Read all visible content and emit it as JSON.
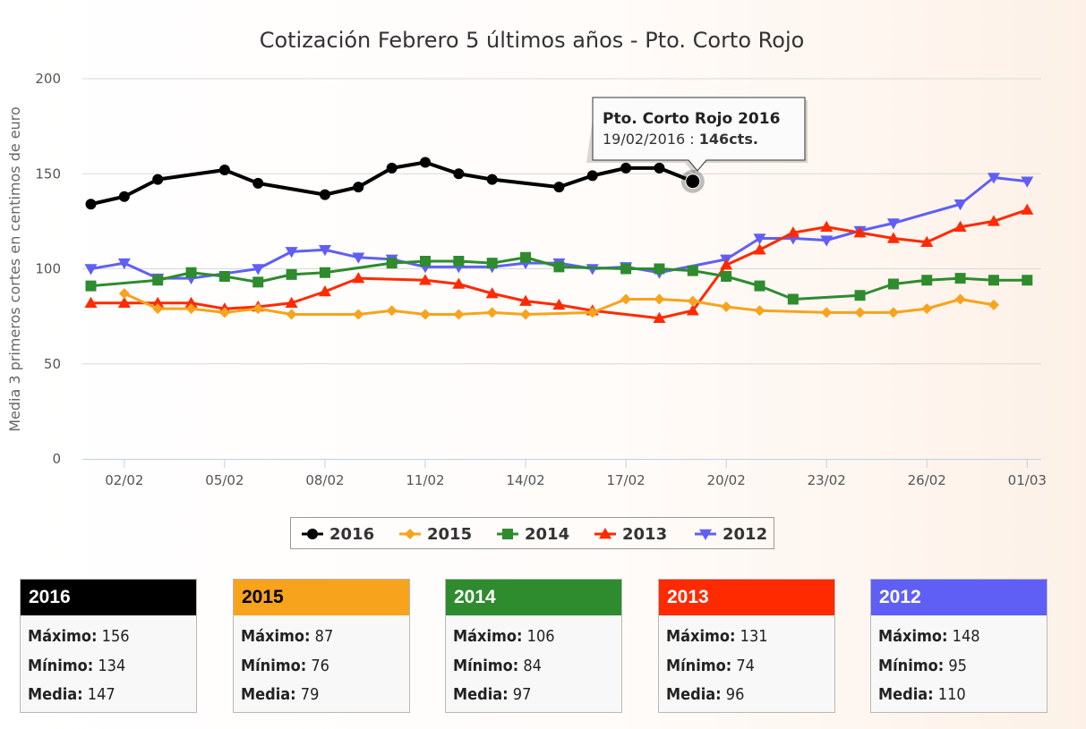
{
  "chart_data": {
    "type": "line",
    "title": "Cotización Febrero 5 últimos años - Pto. Corto Rojo",
    "ylabel": "Media 3 primeros cortes en centimos de euro",
    "xlabel": "",
    "ylim": [
      0,
      200
    ],
    "yticks": [
      "0",
      "50",
      "100",
      "150",
      "200"
    ],
    "xticks": [
      "02/02",
      "05/02",
      "08/02",
      "11/02",
      "14/02",
      "17/02",
      "20/02",
      "23/02",
      "26/02",
      "01/03"
    ],
    "grid": true,
    "legend_position": "bottom-center",
    "series": [
      {
        "name": "2016",
        "color": "#000000",
        "marker": "circle",
        "x": [
          "01/02",
          "02/02",
          "03/02",
          "05/02",
          "06/02",
          "08/02",
          "09/02",
          "10/02",
          "11/02",
          "12/02",
          "13/02",
          "15/02",
          "16/02",
          "17/02",
          "18/02",
          "19/02"
        ],
        "values": [
          134,
          138,
          147,
          152,
          145,
          139,
          143,
          153,
          156,
          150,
          147,
          143,
          149,
          153,
          153,
          146
        ]
      },
      {
        "name": "2015",
        "color": "#f7a31c",
        "marker": "diamond",
        "x": [
          "02/02",
          "03/02",
          "04/02",
          "05/02",
          "06/02",
          "07/02",
          "09/02",
          "10/02",
          "11/02",
          "12/02",
          "13/02",
          "14/02",
          "16/02",
          "17/02",
          "18/02",
          "19/02",
          "20/02",
          "21/02",
          "23/02",
          "24/02",
          "25/02",
          "26/02",
          "27/02",
          "28/02"
        ],
        "values": [
          87,
          79,
          79,
          77,
          79,
          76,
          76,
          78,
          76,
          76,
          77,
          76,
          77,
          84,
          84,
          83,
          80,
          78,
          77,
          77,
          77,
          79,
          84,
          81
        ]
      },
      {
        "name": "2014",
        "color": "#2e8b2e",
        "marker": "square",
        "x": [
          "01/02",
          "03/02",
          "04/02",
          "05/02",
          "06/02",
          "07/02",
          "08/02",
          "10/02",
          "11/02",
          "12/02",
          "13/02",
          "14/02",
          "15/02",
          "17/02",
          "18/02",
          "19/02",
          "20/02",
          "21/02",
          "22/02",
          "24/02",
          "25/02",
          "26/02",
          "27/02",
          "28/02",
          "01/03"
        ],
        "values": [
          91,
          94,
          98,
          96,
          93,
          97,
          98,
          103,
          104,
          104,
          103,
          106,
          101,
          100,
          100,
          99,
          96,
          91,
          84,
          86,
          92,
          94,
          95,
          94,
          94
        ]
      },
      {
        "name": "2013",
        "color": "#ff2a00",
        "marker": "triangle-up",
        "x": [
          "01/02",
          "02/02",
          "03/02",
          "04/02",
          "05/02",
          "06/02",
          "07/02",
          "08/02",
          "09/02",
          "11/02",
          "12/02",
          "13/02",
          "14/02",
          "15/02",
          "16/02",
          "18/02",
          "19/02",
          "20/02",
          "21/02",
          "22/02",
          "23/02",
          "24/02",
          "25/02",
          "26/02",
          "27/02",
          "28/02",
          "01/03"
        ],
        "values": [
          82,
          82,
          82,
          82,
          79,
          80,
          82,
          88,
          95,
          94,
          92,
          87,
          83,
          81,
          78,
          74,
          78,
          102,
          110,
          119,
          122,
          119,
          116,
          114,
          122,
          125,
          131
        ]
      },
      {
        "name": "2012",
        "color": "#5f5ff5",
        "marker": "triangle-down",
        "x": [
          "01/02",
          "02/02",
          "03/02",
          "04/02",
          "06/02",
          "07/02",
          "08/02",
          "09/02",
          "10/02",
          "11/02",
          "12/02",
          "13/02",
          "14/02",
          "15/02",
          "16/02",
          "17/02",
          "18/02",
          "20/02",
          "21/02",
          "22/02",
          "23/02",
          "24/02",
          "25/02",
          "27/02",
          "28/02",
          "01/03"
        ],
        "values": [
          100,
          103,
          95,
          95,
          100,
          109,
          110,
          106,
          105,
          101,
          101,
          101,
          103,
          103,
          100,
          101,
          98,
          105,
          116,
          116,
          115,
          120,
          124,
          134,
          148,
          146
        ]
      }
    ],
    "tooltip": {
      "series": "2016",
      "x": "19/02",
      "value": 146,
      "title": "Pto. Corto Rojo 2016",
      "date_text": "19/02/2016 : ",
      "value_text": "146cts."
    }
  },
  "stats_cards": [
    {
      "year": "2016",
      "color": "#000000",
      "max_label": "Máximo:",
      "max": "156",
      "min_label": "Mínimo:",
      "min": "134",
      "avg_label": "Media:",
      "avg": "147"
    },
    {
      "year": "2015",
      "color": "#f7a31c",
      "max_label": "Máximo:",
      "max": "87",
      "min_label": "Mínimo:",
      "min": "76",
      "avg_label": "Media:",
      "avg": "79"
    },
    {
      "year": "2014",
      "color": "#2e8b2e",
      "max_label": "Máximo:",
      "max": "106",
      "min_label": "Mínimo:",
      "min": "84",
      "avg_label": "Media:",
      "avg": "97"
    },
    {
      "year": "2013",
      "color": "#ff2a00",
      "max_label": "Máximo:",
      "max": "131",
      "min_label": "Mínimo:",
      "min": "74",
      "avg_label": "Media:",
      "avg": "96"
    },
    {
      "year": "2012",
      "color": "#5f5ff5",
      "max_label": "Máximo:",
      "max": "148",
      "min_label": "Mínimo:",
      "min": "95",
      "avg_label": "Media:",
      "avg": "110"
    }
  ]
}
